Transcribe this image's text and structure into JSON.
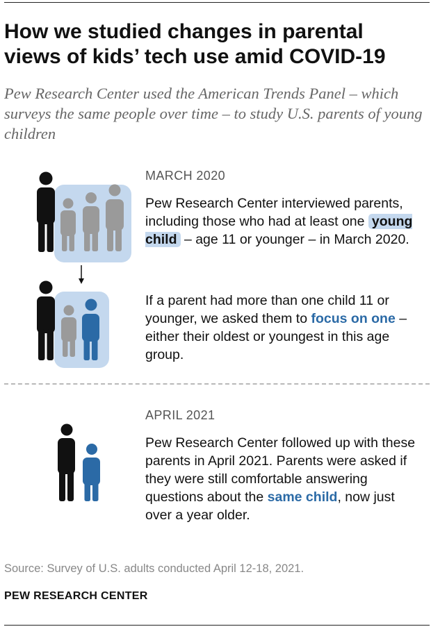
{
  "title": "How we studied changes in parental views of kids’ tech use amid COVID-19",
  "subtitle": "Pew Research Center used the American Trends Panel – which surveys the same people over time – to study U.S. parents of young children",
  "march": {
    "label": "MARCH 2020",
    "p1_before": "Pew Research Center interviewed parents, including those who had at least one",
    "p1_highlight": "young child",
    "p1_after": "– age 11 or younger – in March 2020.",
    "p2_before": "If a parent had more than one child 11 or younger, we asked them to",
    "p2_highlight": "focus on one",
    "p2_after": "– either their oldest or youngest in this age group."
  },
  "april": {
    "label": "APRIL 2021",
    "p_before": "Pew Research Center followed up with these parents in April 2021. Parents were asked if they were still comfortable answering questions about the",
    "p_highlight": "same child",
    "p_after": ", now just over a year older."
  },
  "source": "Source: Survey of U.S. adults conducted April 12-18, 2021.",
  "org": "PEW RESEARCH CENTER",
  "colors": {
    "adult": "#111111",
    "child_gray": "#9a9a9a",
    "child_focus": "#2b6aa6",
    "highlight_box": "#c4d8ee",
    "focus_text": "#2b6aa6"
  }
}
